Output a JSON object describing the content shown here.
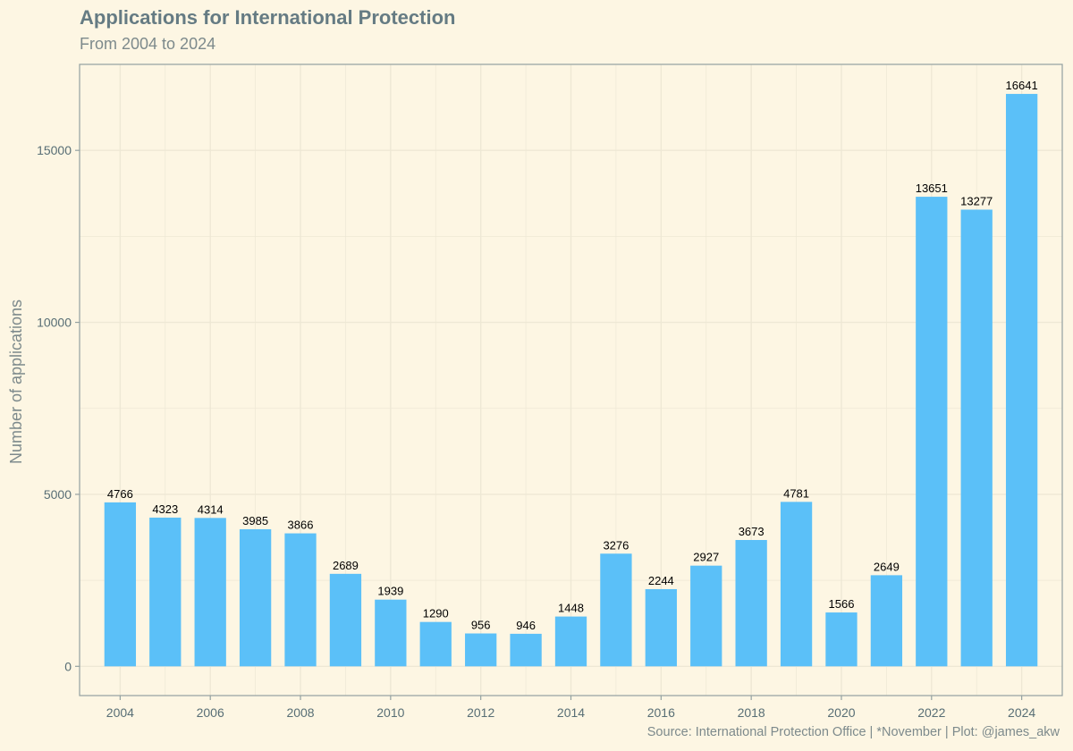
{
  "chart_data": {
    "type": "bar",
    "title": "Applications for International Protection",
    "subtitle": "From 2004 to 2024",
    "caption": "Source: International Protection Office | *November | Plot: @james_akw",
    "xlabel": "",
    "ylabel": "Number of applications",
    "categories": [
      2004,
      2005,
      2006,
      2007,
      2008,
      2009,
      2010,
      2011,
      2012,
      2013,
      2014,
      2015,
      2016,
      2017,
      2018,
      2019,
      2020,
      2021,
      2022,
      2023,
      2024
    ],
    "values": [
      4766,
      4323,
      4314,
      3985,
      3866,
      2689,
      1939,
      1290,
      956,
      946,
      1448,
      3276,
      2244,
      2927,
      3673,
      4781,
      1566,
      2649,
      13651,
      13277,
      16641
    ],
    "data_labels": [
      "4766",
      "4323",
      "4314",
      "3985",
      "3866",
      "2689",
      "1939",
      "1290",
      "956",
      "946",
      "1448",
      "3276",
      "2244",
      "2927",
      "3673",
      "4781",
      "1566",
      "2649",
      "13651",
      "13277",
      "16641"
    ],
    "xticks": [
      "2004",
      "2006",
      "2008",
      "2010",
      "2012",
      "2014",
      "2016",
      "2018",
      "2020",
      "2022",
      "2024"
    ],
    "yticks": [
      "0",
      "5000",
      "10000",
      "15000"
    ],
    "ylim": [
      -850,
      17500
    ],
    "grid": true,
    "legend": "none",
    "colors": {
      "bar": "#5bc0f8",
      "background": "#fdf6e3",
      "grid": "#eee8d5",
      "axis": "#93a1a1"
    }
  }
}
